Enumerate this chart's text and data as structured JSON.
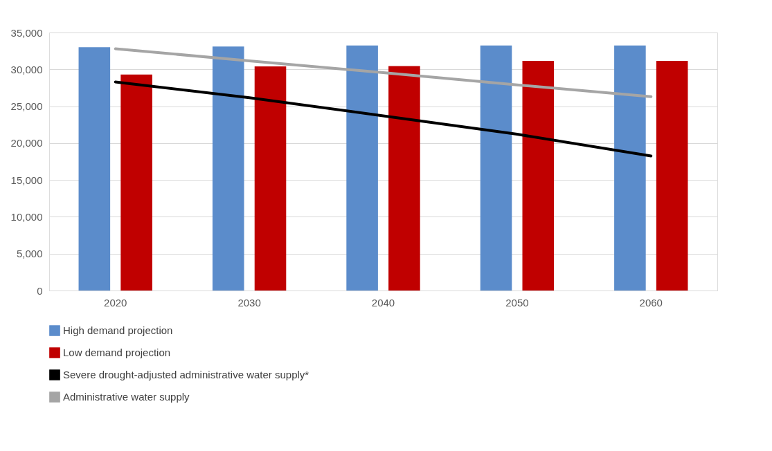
{
  "chart_data": {
    "type": "bar",
    "categories": [
      "2020",
      "2030",
      "2040",
      "2050",
      "2060"
    ],
    "series": [
      {
        "name": "High demand projection",
        "color": "#5b8ccb",
        "values": [
          33000,
          33100,
          33250,
          33250,
          33250
        ]
      },
      {
        "name": "Low demand projection",
        "color": "#c00000",
        "values": [
          29300,
          30400,
          30450,
          31150,
          31150
        ]
      },
      {
        "name": "Severe drought-adjusted administrative water supply*",
        "type": "line",
        "color": "#000000",
        "values": [
          28300,
          26150,
          23700,
          21200,
          18250
        ]
      },
      {
        "name": "Administrative water supply",
        "type": "line",
        "color": "#a5a5a5",
        "values": [
          32800,
          31150,
          29550,
          27900,
          26300
        ]
      }
    ],
    "ylim": [
      0,
      35000
    ],
    "yticks": [
      {
        "value": 0,
        "label": "0"
      },
      {
        "value": 5000,
        "label": "5,000"
      },
      {
        "value": 10000,
        "label": "10,000"
      },
      {
        "value": 15000,
        "label": "15,000"
      },
      {
        "value": 20000,
        "label": "20,000"
      },
      {
        "value": 25000,
        "label": "25,000"
      },
      {
        "value": 30000,
        "label": "30,000"
      },
      {
        "value": 35000,
        "label": "35,000"
      }
    ],
    "grid": "y",
    "legend": "bottom",
    "line_style": "solid",
    "marker": "none"
  }
}
